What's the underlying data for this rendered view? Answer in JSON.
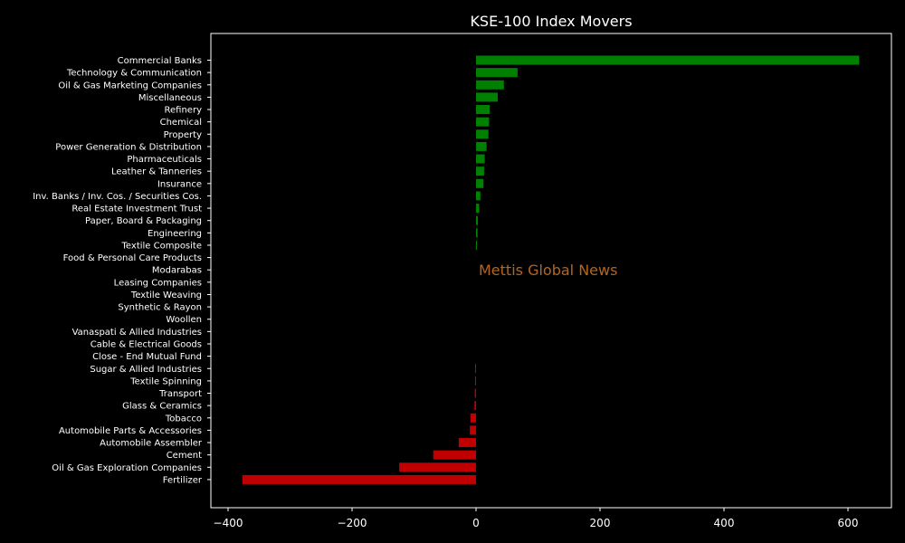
{
  "chart_data": {
    "type": "bar",
    "orientation": "horizontal",
    "title": "KSE-100 Index Movers",
    "xlabel": "",
    "ylabel": "",
    "annotation": "Mettis Global News",
    "xlim": [
      -420,
      670
    ],
    "xticks": [
      -400,
      -200,
      0,
      200,
      400,
      600
    ],
    "xtick_labels": [
      "−400",
      "−200",
      "0",
      "200",
      "400",
      "600"
    ],
    "grid": false,
    "colors": {
      "positive": "#008000",
      "negative": "#c00000",
      "background": "#000000",
      "text": "#ffffff",
      "annotation": "#b5651d"
    },
    "categories": [
      "Commercial Banks",
      "Technology & Communication",
      "Oil & Gas Marketing Companies",
      "Miscellaneous",
      "Refinery",
      "Chemical",
      "Property",
      "Power Generation & Distribution",
      "Pharmaceuticals",
      "Leather & Tanneries",
      "Insurance",
      "Inv. Banks / Inv. Cos. / Securities Cos.",
      "Real Estate Investment Trust",
      "Paper, Board & Packaging",
      "Engineering",
      "Textile Composite",
      "Food & Personal Care Products",
      "Modarabas",
      "Leasing Companies",
      "Textile Weaving",
      "Synthetic & Rayon",
      "Woollen",
      "Vanaspati & Allied Industries",
      "Cable & Electrical Goods",
      "Close - End Mutual Fund",
      "Sugar & Allied Industries",
      "Textile Spinning",
      "Transport",
      "Glass & Ceramics",
      "Tobacco",
      "Automobile Parts & Accessories",
      "Automobile Assembler",
      "Cement",
      "Oil & Gas Exploration Companies",
      "Fertilizer"
    ],
    "values": [
      618,
      67,
      45,
      35,
      22,
      21,
      20,
      17,
      14,
      13,
      12,
      7,
      5,
      3,
      2.5,
      1.5,
      0,
      0,
      0,
      0,
      0,
      0,
      0,
      0,
      0,
      -1.5,
      -1.5,
      -2,
      -2.5,
      -9,
      -10,
      -28,
      -69,
      -124,
      -377
    ]
  }
}
